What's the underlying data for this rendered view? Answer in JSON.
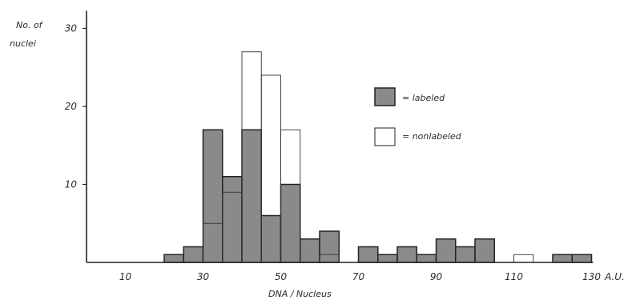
{
  "chart_data": {
    "type": "bar",
    "subtype": "overlaid-histogram",
    "title": "",
    "xlabel": "DNA / Nucleus",
    "x_unit": "A.U.",
    "ylabel": "No. of nuclei",
    "xlim": [
      0,
      130
    ],
    "ylim": [
      0,
      30
    ],
    "xticks": [
      10,
      30,
      50,
      70,
      90,
      110,
      130
    ],
    "yticks": [
      10,
      20,
      30
    ],
    "bin_width": 5,
    "bin_starts": [
      20,
      25,
      30,
      35,
      40,
      45,
      50,
      55,
      60,
      65,
      70,
      75,
      80,
      85,
      90,
      95,
      100,
      105,
      110,
      115,
      120,
      125
    ],
    "grid": false,
    "legend_position": "top-right",
    "series": [
      {
        "name": "labeled",
        "fill": "#8a8a8a",
        "values": [
          1,
          2,
          17,
          11,
          17,
          6,
          10,
          3,
          4,
          0,
          2,
          1,
          2,
          1,
          3,
          2,
          3,
          0,
          0,
          0,
          1,
          1
        ]
      },
      {
        "name": "nonlabeled",
        "fill": "#ffffff",
        "values": [
          0,
          0,
          5,
          9,
          27,
          24,
          17,
          0,
          1,
          0,
          0,
          0,
          0,
          0,
          0,
          0,
          0,
          0,
          1,
          0,
          0,
          0
        ]
      }
    ]
  }
}
